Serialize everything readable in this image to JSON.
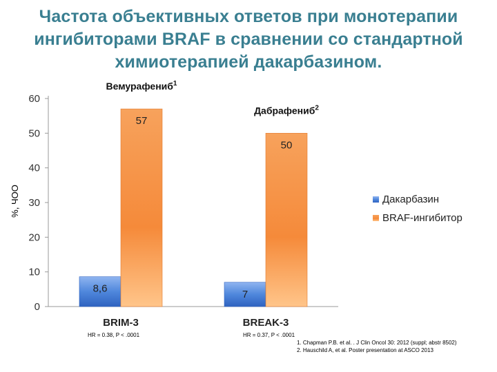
{
  "title_lines": [
    "Частота объективных ответов при монотерапии",
    "ингибиторами BRAF в сравнении со стандартной",
    "химиотерапией дакарбазином."
  ],
  "notes": {
    "brim3": "HR = 0.38, P < .0001",
    "break3": "HR = 0.37, P < .0001"
  },
  "references": [
    "1. Chapman P.B. et al. . J Clin Oncol 30: 2012 (suppl; abstr 8502)",
    "2. Hauschild A, et al. Poster presentation at ASCO 2013"
  ],
  "colors": {
    "title": "#3a7f91",
    "dacarbazine": "#3d7ad6",
    "braf": "#f58a3a"
  },
  "chart_data": {
    "type": "bar",
    "categories": [
      "BRIM-3",
      "BREAK-3"
    ],
    "series": [
      {
        "name": "Дакарбазин",
        "values": [
          8.6,
          7
        ],
        "labels": [
          "8,6",
          "7"
        ]
      },
      {
        "name": "BRAF-ингибитор",
        "values": [
          57,
          50
        ],
        "labels": [
          "57",
          "50"
        ]
      }
    ],
    "annotations": [
      {
        "text": "Вемурафениб",
        "sup": "1"
      },
      {
        "text": "Дабрафениб",
        "sup": "2"
      }
    ],
    "ylabel": "%, ЧОО",
    "ylim": [
      0,
      60
    ],
    "yticks": [
      0,
      10,
      20,
      30,
      40,
      50,
      60
    ],
    "grid": false,
    "legend": "right"
  }
}
